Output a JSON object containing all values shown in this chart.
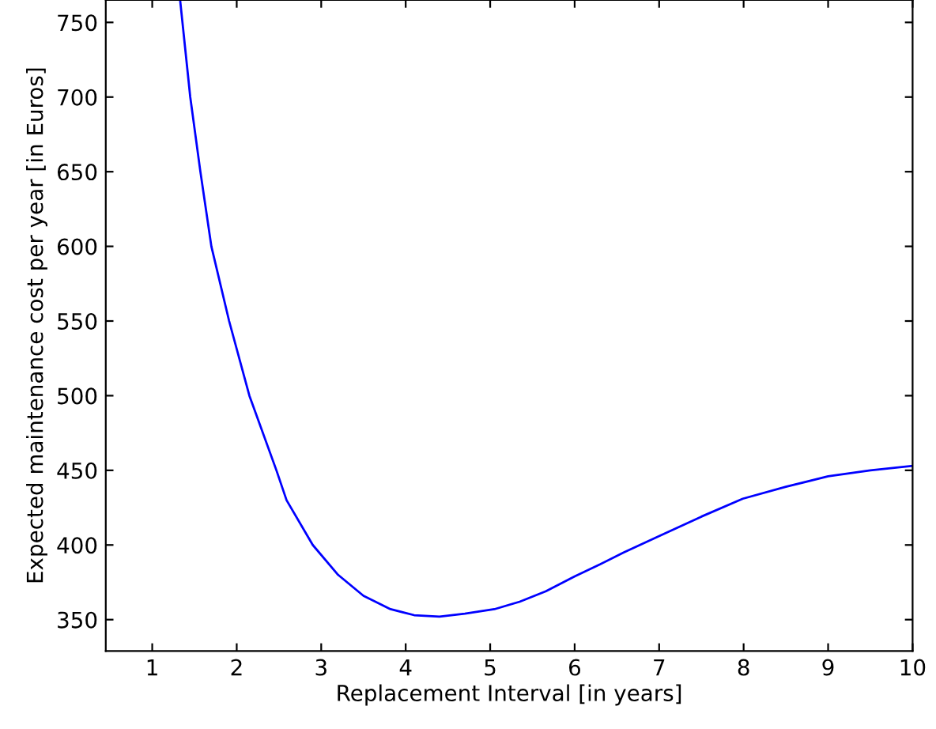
{
  "chart_data": {
    "type": "line",
    "xlabel": "Replacement Interval [in years]",
    "ylabel": "Expected maintenance cost per year [in Euros]",
    "x": [
      1.33,
      1.45,
      1.57,
      1.7,
      1.91,
      2.15,
      2.47,
      2.59,
      2.9,
      3.2,
      3.5,
      3.82,
      4.1,
      4.4,
      4.7,
      5.05,
      5.35,
      5.66,
      6.0,
      6.3,
      6.58,
      7.0,
      7.5,
      7.99,
      8.5,
      9.0,
      9.5,
      10.0
    ],
    "series": [
      {
        "color": "#0000ff",
        "values": [
          765,
          700,
          650,
          600,
          550,
          500,
          450,
          430,
          400,
          380,
          366,
          357,
          353,
          352,
          354,
          357,
          362,
          369,
          379,
          387,
          395,
          406,
          419,
          431,
          439,
          446,
          450,
          453
        ]
      }
    ],
    "xlim": [
      0.45,
      10
    ],
    "ylim": [
      329,
      765
    ],
    "xticks": [
      1,
      2,
      3,
      4,
      5,
      6,
      7,
      8,
      9,
      10
    ],
    "yticks": [
      350,
      400,
      450,
      500,
      550,
      600,
      650,
      700,
      750
    ],
    "grid": false,
    "line_style": "solid"
  }
}
